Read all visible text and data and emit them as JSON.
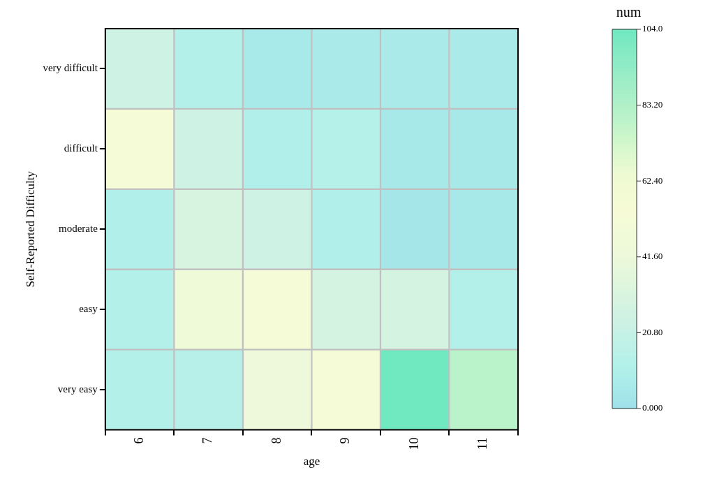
{
  "chart_data": {
    "type": "heatmap",
    "xlabel": "age",
    "ylabel": "Self-Reported Difficulty",
    "clabel": "num",
    "categories": [
      "6",
      "7",
      "8",
      "9",
      "10",
      "11"
    ],
    "y_categories": [
      "very difficult",
      "difficult",
      "moderate",
      "easy",
      "very easy"
    ],
    "cells": [
      [
        25,
        12,
        6,
        7,
        7,
        7
      ],
      [
        55,
        25,
        11,
        13,
        5,
        5
      ],
      [
        11,
        30,
        25,
        11,
        4,
        5
      ],
      [
        12,
        45,
        55,
        28,
        28,
        12
      ],
      [
        12,
        14,
        43,
        55,
        104,
        80
      ]
    ],
    "clim": [
      0,
      104
    ],
    "cticks": [
      {
        "value": 0,
        "label": "0.000"
      },
      {
        "value": 20.8,
        "label": "20.80"
      },
      {
        "value": 41.6,
        "label": "41.60"
      },
      {
        "value": 62.4,
        "label": "62.40"
      },
      {
        "value": 83.2,
        "label": "83.20"
      },
      {
        "value": 104,
        "label": "104.0"
      }
    ]
  }
}
